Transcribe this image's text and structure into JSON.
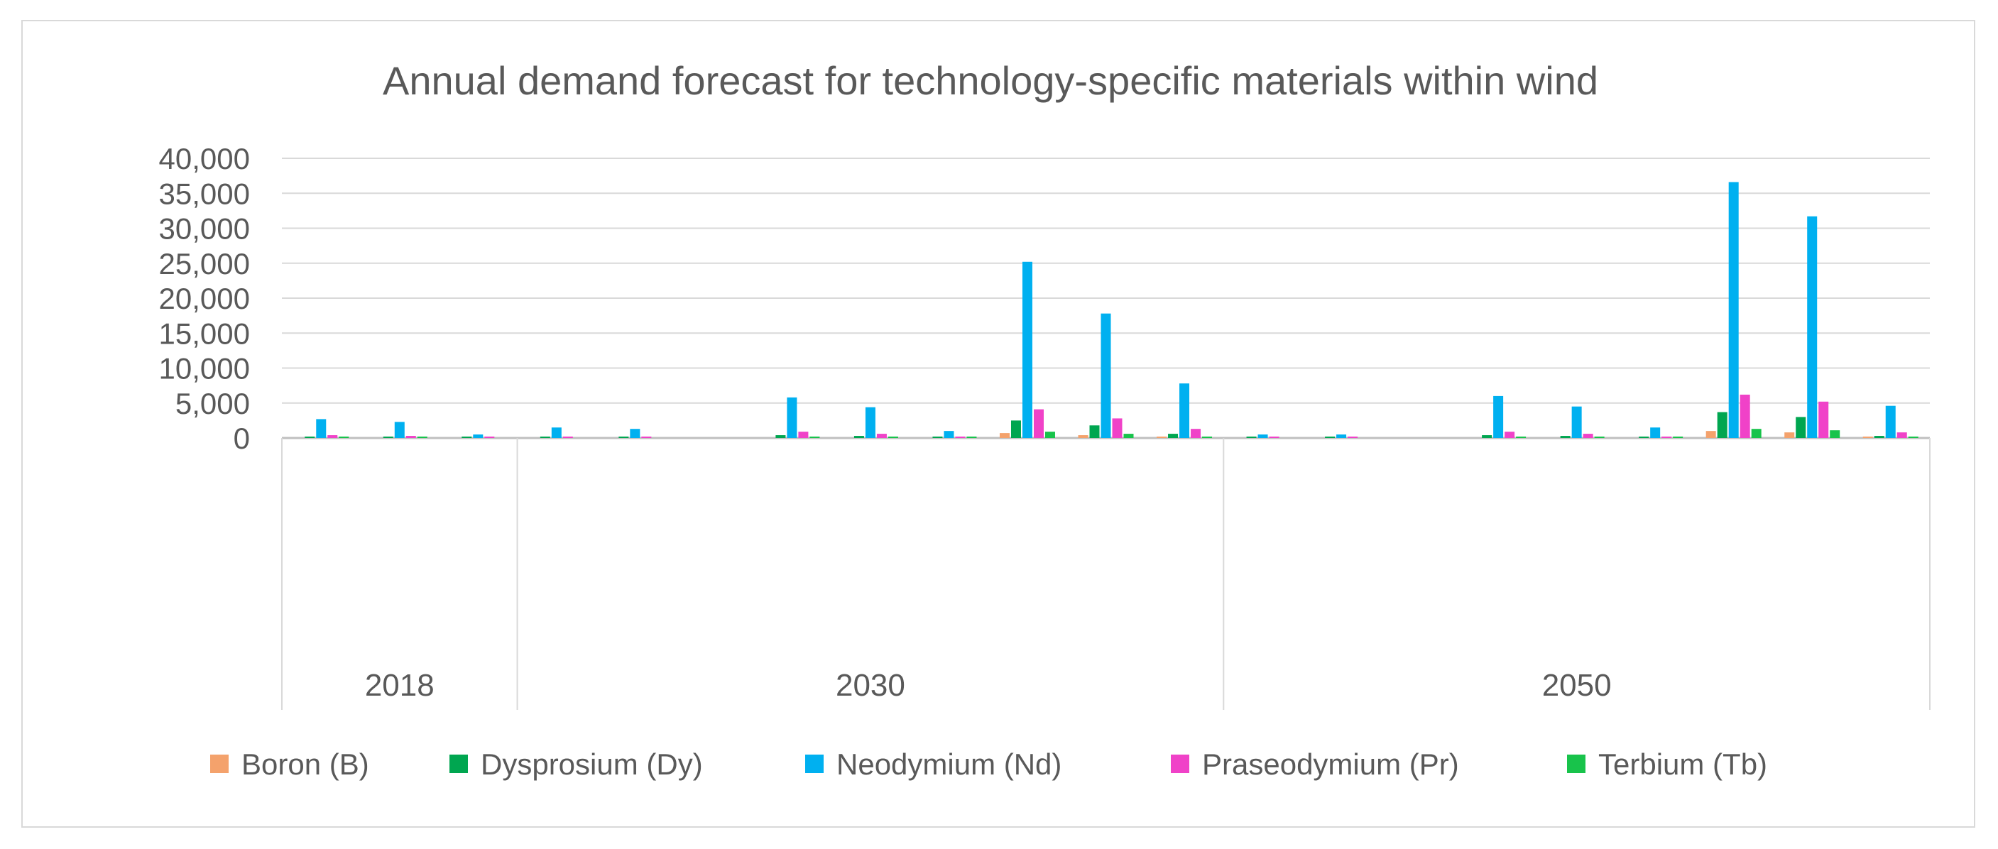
{
  "chart_data": {
    "type": "bar",
    "title": "Annual demand forecast for technology-specific materials within wind",
    "xlabel": "",
    "ylabel": "",
    "ylim": [
      0,
      40000
    ],
    "yticks": [
      0,
      5000,
      10000,
      15000,
      20000,
      25000,
      30000,
      35000,
      40000
    ],
    "ytick_labels": [
      "0",
      "5,000",
      "10,000",
      "15,000",
      "20,000",
      "25,000",
      "30,000",
      "35,000",
      "40,000"
    ],
    "grid": true,
    "legend_position": "bottom",
    "groups": [
      {
        "label": "2018",
        "clusters": 3
      },
      {
        "label": "2030",
        "clusters": 9
      },
      {
        "label": "2050",
        "clusters": 9
      }
    ],
    "series": [
      {
        "name": "Boron (B)",
        "color": "#f4a26c",
        "values": [
          0,
          0,
          0,
          0,
          0,
          0,
          0,
          0,
          0,
          700,
          400,
          200,
          0,
          0,
          0,
          0,
          0,
          0,
          1000,
          800,
          100
        ]
      },
      {
        "name": "Dysprosium (Dy)",
        "color": "#00a650",
        "values": [
          50,
          50,
          20,
          20,
          20,
          0,
          400,
          300,
          60,
          2500,
          1800,
          600,
          20,
          20,
          0,
          400,
          300,
          50,
          3700,
          3000,
          300
        ]
      },
      {
        "name": "Neodymium (Nd)",
        "color": "#00b0f0",
        "values": [
          2700,
          2300,
          500,
          1500,
          1300,
          0,
          5800,
          4400,
          1000,
          25200,
          17800,
          7800,
          500,
          500,
          0,
          6000,
          4500,
          1500,
          36600,
          31700,
          4600
        ]
      },
      {
        "name": "Praseodymium (Pr)",
        "color": "#f042c8",
        "values": [
          400,
          300,
          50,
          100,
          100,
          0,
          900,
          600,
          150,
          4100,
          2800,
          1300,
          50,
          50,
          0,
          900,
          600,
          150,
          6200,
          5200,
          800
        ]
      },
      {
        "name": "Terbium (Tb)",
        "color": "#18c34b",
        "values": [
          20,
          20,
          0,
          0,
          0,
          0,
          100,
          100,
          20,
          900,
          600,
          200,
          0,
          0,
          0,
          100,
          100,
          20,
          1300,
          1100,
          100
        ]
      }
    ]
  }
}
